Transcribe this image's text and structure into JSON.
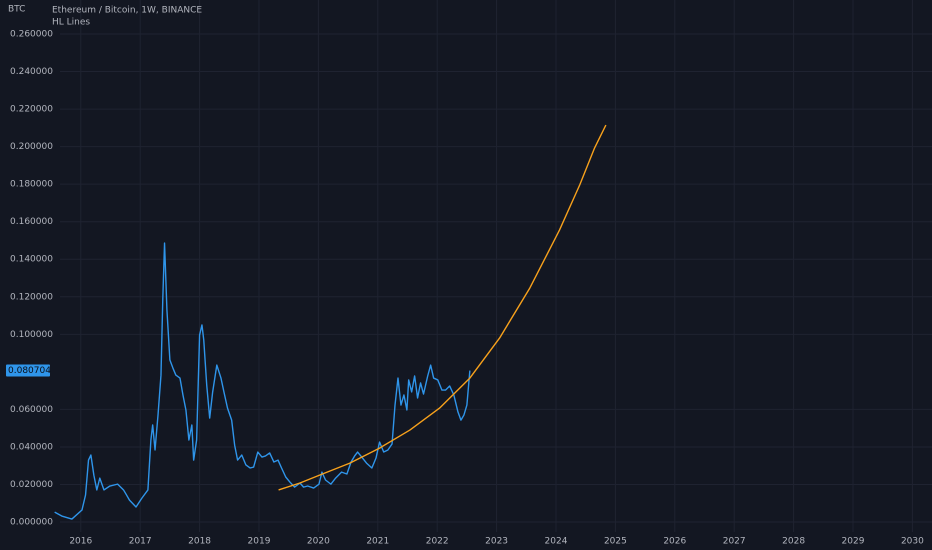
{
  "chart_data": {
    "type": "line",
    "axis_unit": "BTC",
    "xlim": [
      2014.64,
      2030.33
    ],
    "xticks": [
      2016,
      2017,
      2018,
      2019,
      2020,
      2021,
      2022,
      2023,
      2024,
      2025,
      2026,
      2027,
      2028,
      2029,
      2030
    ],
    "ylim": [
      -0.0053,
      0.2781
    ],
    "yticks": [
      {
        "value": 0,
        "label": "0.000000"
      },
      {
        "value": 0.02,
        "label": "0.020000"
      },
      {
        "value": 0.04,
        "label": "0.040000"
      },
      {
        "value": 0.06,
        "label": "0.060000"
      },
      {
        "value": 0.1,
        "label": "0.100000"
      },
      {
        "value": 0.12,
        "label": "0.120000"
      },
      {
        "value": 0.14,
        "label": "0.140000"
      },
      {
        "value": 0.16,
        "label": "0.160000"
      },
      {
        "value": 0.18,
        "label": "0.180000"
      },
      {
        "value": 0.2,
        "label": "0.200000"
      },
      {
        "value": 0.22,
        "label": "0.220000"
      },
      {
        "value": 0.24,
        "label": "0.240000"
      },
      {
        "value": 0.26,
        "label": "0.260000"
      }
    ],
    "grid": true,
    "series": [
      {
        "name": "Ethereum / Bitcoin, 1W, BINANCE",
        "color": "#2f95ea",
        "x": [
          2015.56,
          2015.68,
          2015.85,
          2016.02,
          2016.08,
          2016.13,
          2016.17,
          2016.22,
          2016.27,
          2016.32,
          2016.39,
          2016.49,
          2016.62,
          2016.72,
          2016.82,
          2016.93,
          2017.03,
          2017.13,
          2017.18,
          2017.21,
          2017.25,
          2017.3,
          2017.35,
          2017.38,
          2017.41,
          2017.45,
          2017.5,
          2017.55,
          2017.6,
          2017.67,
          2017.72,
          2017.77,
          2017.82,
          2017.87,
          2017.9,
          2017.95,
          2018.0,
          2018.04,
          2018.07,
          2018.12,
          2018.17,
          2018.22,
          2018.29,
          2018.36,
          2018.41,
          2018.47,
          2018.54,
          2018.59,
          2018.64,
          2018.71,
          2018.78,
          2018.85,
          2018.91,
          2018.98,
          2019.05,
          2019.11,
          2019.18,
          2019.25,
          2019.32,
          2019.38,
          2019.45,
          2019.52,
          2019.6,
          2019.69,
          2019.75,
          2019.82,
          2019.92,
          2020.01,
          2020.06,
          2020.12,
          2020.21,
          2020.29,
          2020.39,
          2020.48,
          2020.55,
          2020.61,
          2020.66,
          2020.73,
          2020.81,
          2020.9,
          2020.97,
          2021.03,
          2021.1,
          2021.17,
          2021.24,
          2021.29,
          2021.34,
          2021.39,
          2021.44,
          2021.49,
          2021.52,
          2021.57,
          2021.62,
          2021.67,
          2021.72,
          2021.77,
          2021.84,
          2021.89,
          2021.94,
          2022.01,
          2022.08,
          2022.14,
          2022.21,
          2022.28,
          2022.35,
          2022.4,
          2022.45,
          2022.5,
          2022.55
        ],
        "values": [
          0.0053,
          0.0032,
          0.0016,
          0.0064,
          0.0144,
          0.033,
          0.0357,
          0.025,
          0.0171,
          0.0234,
          0.0171,
          0.0192,
          0.0202,
          0.0171,
          0.0117,
          0.008,
          0.0128,
          0.0171,
          0.0437,
          0.0517,
          0.0384,
          0.057,
          0.0783,
          0.1183,
          0.1486,
          0.113,
          0.0863,
          0.0821,
          0.0783,
          0.0767,
          0.0677,
          0.0597,
          0.0437,
          0.0517,
          0.033,
          0.0437,
          0.0996,
          0.105,
          0.097,
          0.073,
          0.0554,
          0.0693,
          0.0836,
          0.0767,
          0.0693,
          0.0607,
          0.0543,
          0.041,
          0.033,
          0.0357,
          0.0304,
          0.0288,
          0.0293,
          0.0373,
          0.0346,
          0.0352,
          0.0368,
          0.032,
          0.033,
          0.0288,
          0.024,
          0.0213,
          0.0186,
          0.0208,
          0.0186,
          0.0192,
          0.0181,
          0.0202,
          0.0266,
          0.0224,
          0.0202,
          0.0234,
          0.0266,
          0.0256,
          0.032,
          0.0352,
          0.0373,
          0.0346,
          0.0314,
          0.0288,
          0.0341,
          0.0426,
          0.0373,
          0.0384,
          0.0416,
          0.0623,
          0.0767,
          0.0623,
          0.0677,
          0.0597,
          0.0757,
          0.0693,
          0.0778,
          0.0661,
          0.0741,
          0.0682,
          0.0778,
          0.0836,
          0.0767,
          0.0757,
          0.0703,
          0.0703,
          0.0725,
          0.0677,
          0.0586,
          0.0543,
          0.057,
          0.0623,
          0.080704
        ]
      },
      {
        "name": "HL Lines",
        "color": "#f7a11c",
        "x": [
          2019.33,
          2019.69,
          2020.02,
          2020.53,
          2021.03,
          2021.54,
          2022.04,
          2022.55,
          2023.05,
          2023.56,
          2024.06,
          2024.4,
          2024.65,
          2024.84
        ],
        "values": [
          0.0171,
          0.0208,
          0.025,
          0.0314,
          0.0394,
          0.049,
          0.0607,
          0.0767,
          0.098,
          0.1247,
          0.1556,
          0.1796,
          0.1993,
          0.2115
        ]
      }
    ]
  }
}
